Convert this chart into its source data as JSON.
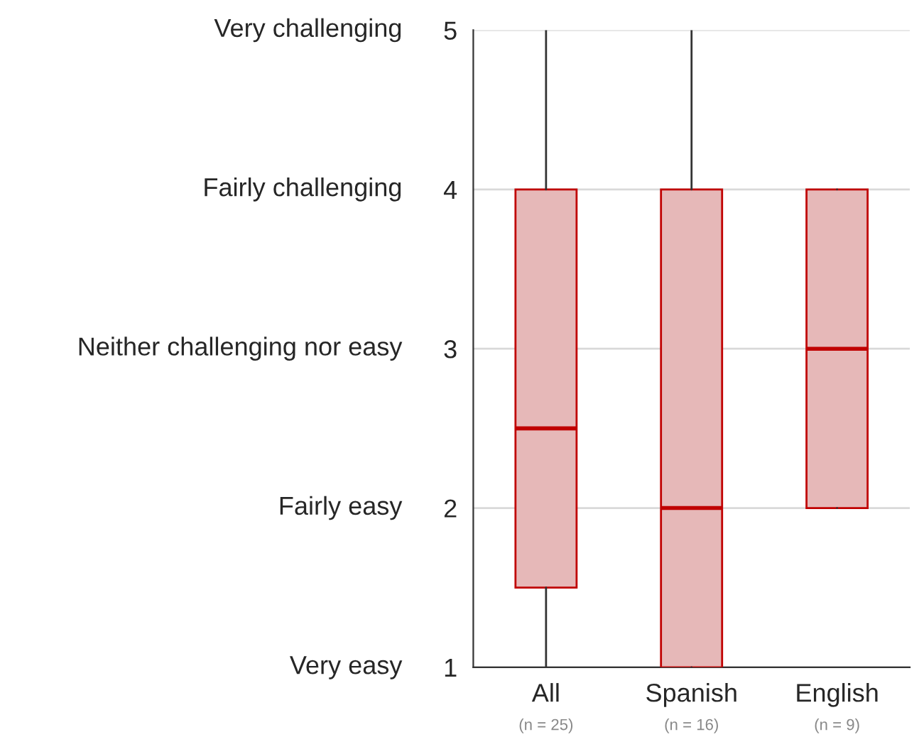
{
  "chart_data": {
    "type": "box",
    "categories": [
      "All",
      "Spanish",
      "English"
    ],
    "boxes": [
      {
        "low": 1,
        "q1": 1.5,
        "median": 2.5,
        "q3": 4,
        "high": 5
      },
      {
        "low": 1,
        "q1": 1,
        "median": 2,
        "q3": 4,
        "high": 5
      },
      {
        "low": 2,
        "q1": 2,
        "median": 3,
        "q3": 4,
        "high": 4
      }
    ],
    "color": "#e6b8b8",
    "ylim": [
      1,
      5
    ],
    "yticks": [
      1,
      2,
      3,
      4,
      5
    ],
    "annotations": [
      "(n = 25)",
      "(n = 16)",
      "(n = 9)",
      "Very easy",
      "Fairly easy",
      "Neither challenging nor easy",
      "Fairly challenging",
      "Very challenging"
    ],
    "grid": "y"
  }
}
